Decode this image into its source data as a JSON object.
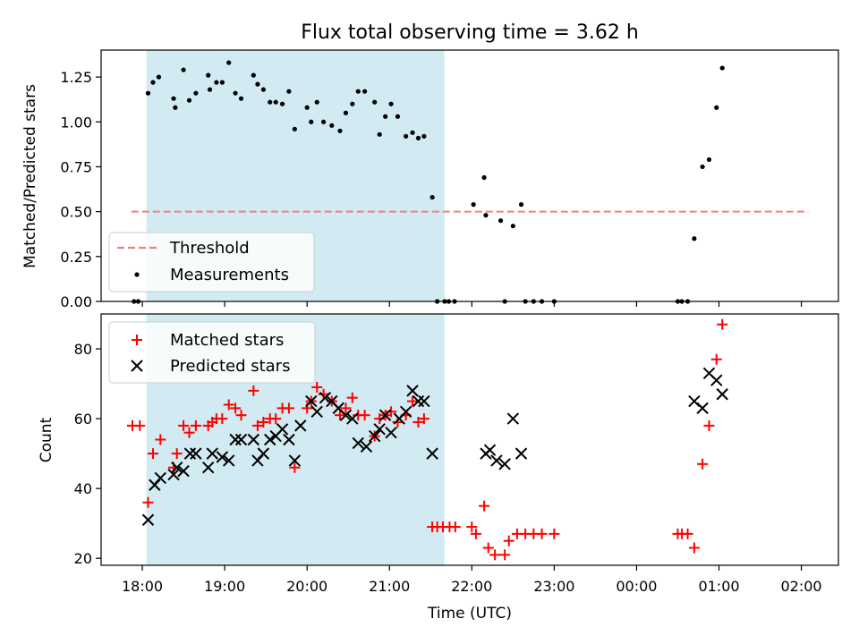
{
  "chart_data": [
    {
      "type": "scatter",
      "title": "Flux total observing time = 3.62 h",
      "ylabel": "Matched/Predicted stars",
      "ylim": [
        0,
        1.4
      ],
      "xlim": [
        -0.5,
        8.45
      ],
      "y_ticks": [
        "0.00",
        "0.25",
        "0.50",
        "0.75",
        "1.00",
        "1.25"
      ],
      "y_tick_values": [
        0,
        0.25,
        0.5,
        0.75,
        1.0,
        1.25
      ],
      "shaded_interval": {
        "start": "18:03",
        "end": "21:40",
        "color": "#add8e6"
      },
      "threshold": {
        "label": "Threshold",
        "value": 0.5,
        "x_start": "17:52",
        "x_end": "02:05",
        "color": "#f08080"
      },
      "legend": {
        "placement": "bottom-left",
        "entries": [
          "Threshold",
          "Measurements"
        ]
      },
      "series": [
        {
          "name": "Measurements",
          "color": "#000000",
          "x_hours": [
            -0.1,
            -0.05,
            0.07,
            0.13,
            0.2,
            0.38,
            0.4,
            0.5,
            0.57,
            0.65,
            0.8,
            0.82,
            0.9,
            0.97,
            1.05,
            1.13,
            1.2,
            1.35,
            1.4,
            1.47,
            1.55,
            1.62,
            1.7,
            1.78,
            1.85,
            2.0,
            2.05,
            2.12,
            2.2,
            2.3,
            2.4,
            2.47,
            2.55,
            2.62,
            2.7,
            2.82,
            2.88,
            2.95,
            3.02,
            3.1,
            3.2,
            3.28,
            3.35,
            3.42,
            3.52,
            3.58,
            3.67,
            3.72,
            3.79,
            4.02,
            4.15,
            4.17,
            4.35,
            4.4,
            4.5,
            4.6,
            4.65,
            4.75,
            4.85,
            5.0,
            6.5,
            6.55,
            6.62,
            6.7,
            6.8,
            6.88,
            6.97,
            7.04
          ],
          "y": [
            0.0,
            0.0,
            1.16,
            1.22,
            1.25,
            1.13,
            1.08,
            1.29,
            1.12,
            1.16,
            1.26,
            1.18,
            1.22,
            1.22,
            1.33,
            1.16,
            1.13,
            1.26,
            1.21,
            1.18,
            1.11,
            1.11,
            1.1,
            1.17,
            0.96,
            1.08,
            1.0,
            1.11,
            1.0,
            0.98,
            0.95,
            1.05,
            1.1,
            1.17,
            1.17,
            1.11,
            0.93,
            1.03,
            1.1,
            1.03,
            0.92,
            0.94,
            0.91,
            0.92,
            0.58,
            0.0,
            0.0,
            0.0,
            0.0,
            0.54,
            0.69,
            0.48,
            0.45,
            0.0,
            0.42,
            0.54,
            0.0,
            0.0,
            0.0,
            0.0,
            0.0,
            0.0,
            0.0,
            0.35,
            0.75,
            0.79,
            1.08,
            1.3
          ]
        }
      ]
    },
    {
      "type": "scatter",
      "xlabel": "Time (UTC)",
      "ylabel": "Count",
      "ylim": [
        18,
        90
      ],
      "xlim": [
        -0.5,
        8.45
      ],
      "x_ticks": [
        "18:00",
        "19:00",
        "20:00",
        "21:00",
        "22:00",
        "23:00",
        "00:00",
        "01:00",
        "02:00"
      ],
      "y_ticks": [
        "20",
        "40",
        "60",
        "80"
      ],
      "y_tick_values": [
        20,
        40,
        60,
        80
      ],
      "shaded_interval": {
        "start": "18:03",
        "end": "21:40",
        "color": "#add8e6"
      },
      "legend": {
        "placement": "top-left",
        "entries": [
          "Matched stars",
          "Predicted stars"
        ]
      },
      "series": [
        {
          "name": "Matched stars",
          "marker": "plus",
          "color": "#ff0000",
          "x_hours": [
            -0.12,
            -0.03,
            0.07,
            0.13,
            0.22,
            0.38,
            0.42,
            0.5,
            0.57,
            0.65,
            0.8,
            0.85,
            0.9,
            0.97,
            1.05,
            1.13,
            1.2,
            1.35,
            1.4,
            1.47,
            1.55,
            1.62,
            1.7,
            1.78,
            1.85,
            2.0,
            2.05,
            2.12,
            2.2,
            2.3,
            2.4,
            2.47,
            2.55,
            2.62,
            2.7,
            2.82,
            2.88,
            2.95,
            3.02,
            3.1,
            3.2,
            3.28,
            3.35,
            3.42,
            3.52,
            3.58,
            3.65,
            3.73,
            3.8,
            4.0,
            4.05,
            4.15,
            4.2,
            4.28,
            4.4,
            4.45,
            4.55,
            4.65,
            4.75,
            4.85,
            5.0,
            6.5,
            6.55,
            6.62,
            6.7,
            6.8,
            6.88,
            6.97,
            7.04
          ],
          "y": [
            58,
            58,
            36,
            50,
            54,
            46,
            50,
            58,
            56,
            58,
            58,
            59,
            60,
            60,
            64,
            63,
            61,
            68,
            58,
            59,
            60,
            60,
            63,
            63,
            46,
            63,
            65,
            69,
            67,
            65,
            61,
            63,
            66,
            61,
            61,
            55,
            60,
            61,
            62,
            59,
            61,
            65,
            59,
            60,
            29,
            29,
            29,
            29,
            29,
            29,
            27,
            35,
            23,
            21,
            21,
            25,
            27,
            27,
            27,
            27,
            27,
            27,
            27,
            27,
            23,
            47,
            58,
            77,
            87
          ]
        },
        {
          "name": "Predicted stars",
          "marker": "x",
          "color": "#000000",
          "x_hours": [
            0.07,
            0.15,
            0.22,
            0.38,
            0.42,
            0.5,
            0.58,
            0.65,
            0.8,
            0.85,
            0.97,
            1.05,
            1.13,
            1.2,
            1.35,
            1.4,
            1.47,
            1.55,
            1.62,
            1.7,
            1.78,
            1.85,
            1.92,
            2.05,
            2.12,
            2.22,
            2.3,
            2.38,
            2.47,
            2.55,
            2.62,
            2.72,
            2.82,
            2.88,
            2.95,
            3.02,
            3.12,
            3.2,
            3.28,
            3.35,
            3.42,
            3.52,
            4.17,
            4.22,
            4.3,
            4.4,
            4.5,
            4.6,
            6.7,
            6.8,
            6.88,
            6.97,
            7.04
          ],
          "y": [
            31,
            41,
            43,
            44,
            46,
            45,
            50,
            50,
            46,
            50,
            49,
            48,
            54,
            54,
            54,
            48,
            50,
            54,
            55,
            57,
            54,
            48,
            58,
            65,
            62,
            66,
            65,
            63,
            61,
            60,
            53,
            52,
            55,
            57,
            61,
            56,
            60,
            62,
            68,
            65,
            65,
            50,
            50,
            51,
            48,
            47,
            60,
            50,
            65,
            63,
            73,
            71,
            67
          ]
        }
      ]
    }
  ]
}
